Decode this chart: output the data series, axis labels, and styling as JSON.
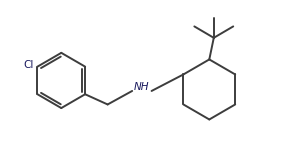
{
  "background_color": "#ffffff",
  "line_color": "#3d3d3d",
  "line_width": 1.4,
  "text_color": "#1a1a5e",
  "label_Cl": "Cl",
  "label_NH": "NH",
  "figsize": [
    2.99,
    1.66
  ],
  "dpi": 100,
  "xlim": [
    0,
    10
  ],
  "ylim": [
    0,
    5.53
  ]
}
